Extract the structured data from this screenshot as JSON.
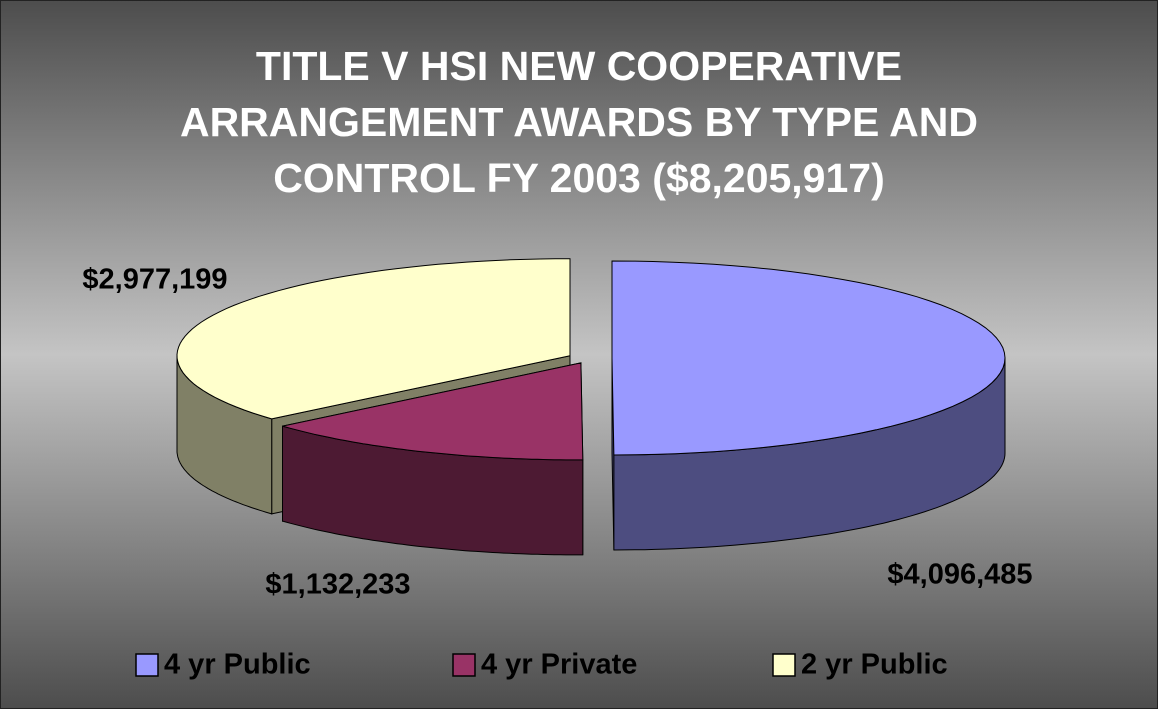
{
  "chart_data": {
    "type": "pie3d",
    "title": "TITLE V HSI NEW COOPERATIVE ARRANGEMENT AWARDS BY TYPE AND CONTROL FY 2003 ($8,205,917)",
    "categories": [
      "4 yr Public",
      "4 yr Private",
      "2 yr Public"
    ],
    "values": [
      4096485,
      1132233,
      2977199
    ],
    "value_labels": [
      "$4,096,485",
      "$1,132,233",
      "$2,977,199"
    ],
    "colors": [
      "#9999ff",
      "#993366",
      "#ffffcc"
    ],
    "legend": "bottom"
  }
}
